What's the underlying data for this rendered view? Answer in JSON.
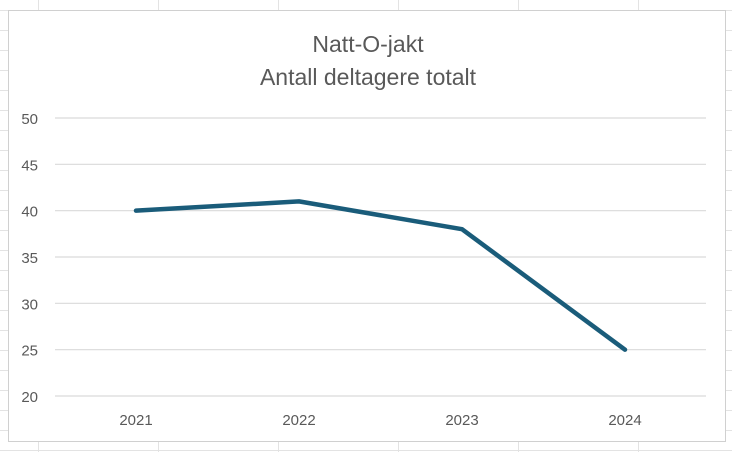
{
  "chart_data": {
    "type": "line",
    "title": "Natt-O-jakt",
    "subtitle": "Antall deltagere totalt",
    "xlabel": "",
    "ylabel": "",
    "categories": [
      "2021",
      "2022",
      "2023",
      "2024"
    ],
    "series": [
      {
        "values": [
          40,
          41,
          38,
          25
        ],
        "color": "#1a5c7a"
      }
    ],
    "ylim": [
      20,
      50
    ],
    "yticks": [
      20,
      25,
      30,
      35,
      40,
      45,
      50
    ],
    "grid": true,
    "legend": "none",
    "colors": {
      "gridline": "#d9d9d9",
      "tick_text": "#595959",
      "title_text": "#595959"
    }
  }
}
